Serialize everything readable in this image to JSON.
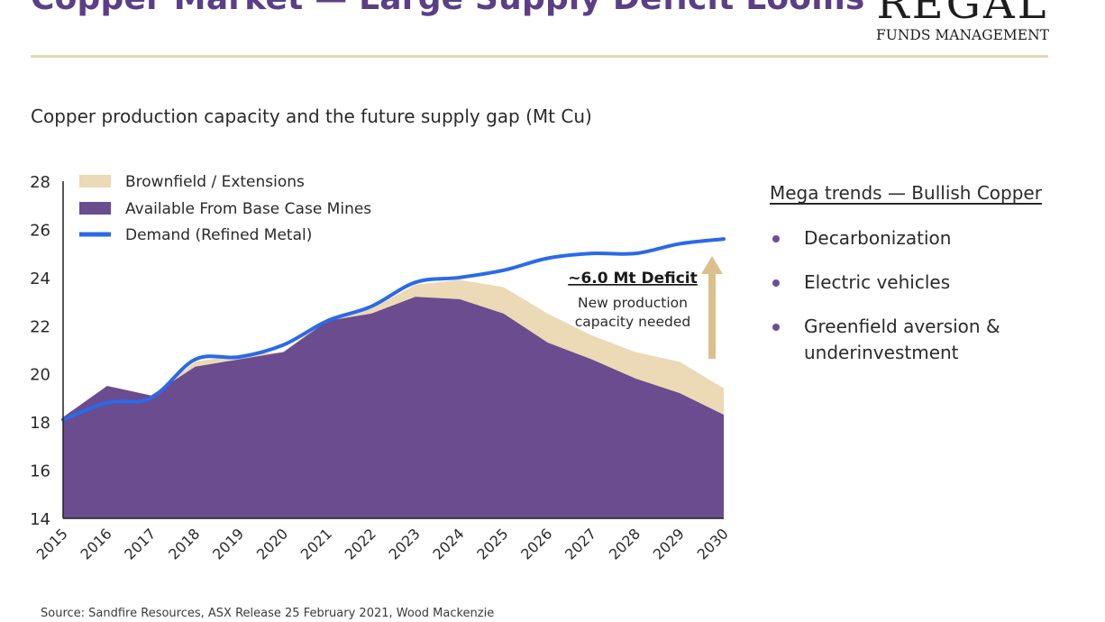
{
  "header": {
    "title": "Copper Market — Large Supply Deficit Looms",
    "logo_top": "REGAL",
    "logo_sub": "FUNDS MANAGEMENT"
  },
  "chart_data": {
    "type": "area",
    "title": "Copper production capacity and the future supply gap (Mt Cu)",
    "ylim": [
      14,
      28
    ],
    "yticks": [
      14,
      16,
      18,
      20,
      22,
      24,
      26,
      28
    ],
    "x": [
      "2015",
      "2016",
      "2017",
      "2018",
      "2019",
      "2020",
      "2021",
      "2022",
      "2023",
      "2024",
      "2025",
      "2026",
      "2027",
      "2028",
      "2029",
      "2030"
    ],
    "legend": [
      "Brownfield / Extensions",
      "Available From Base Case Mines",
      "Demand  (Refined Metal)"
    ],
    "legend_position": "top-left",
    "series": [
      {
        "name": "Available From Base Case Mines",
        "kind": "area",
        "color": "#6a4c8f",
        "values": [
          18.2,
          19.5,
          19.1,
          20.3,
          20.6,
          20.9,
          22.2,
          22.5,
          23.2,
          23.1,
          22.5,
          21.3,
          20.6,
          19.8,
          19.2,
          18.3
        ]
      },
      {
        "name": "Brownfield / Extensions",
        "kind": "area",
        "color": "#ecd9b5",
        "values": [
          18.2,
          19.5,
          19.1,
          20.5,
          20.8,
          20.9,
          22.3,
          22.7,
          23.7,
          23.9,
          23.6,
          22.5,
          21.6,
          20.9,
          20.5,
          19.4
        ]
      },
      {
        "name": "Demand  (Refined Metal)",
        "kind": "line",
        "color": "#2a6ae8",
        "values": [
          18.1,
          18.8,
          19.0,
          20.6,
          20.7,
          21.2,
          22.2,
          22.8,
          23.8,
          24.0,
          24.3,
          24.8,
          25.0,
          25.0,
          25.4,
          25.6
        ]
      }
    ],
    "annotation": {
      "label": "~6.0 Mt Deficit",
      "note_line1": "New production",
      "note_line2": "capacity needed",
      "arrow_color": "#dcc08b"
    }
  },
  "side_panel": {
    "heading": "Mega trends — Bullish Copper",
    "items": [
      {
        "line1": "Decarbonization",
        "line2": ""
      },
      {
        "line1": "Electric vehicles",
        "line2": ""
      },
      {
        "line1": "Greenfield aversion &",
        "line2": "underinvestment"
      }
    ]
  },
  "footer": {
    "source": "Source: Sandfire Resources, ASX Release 25 February 2021, Wood Mackenzie"
  }
}
